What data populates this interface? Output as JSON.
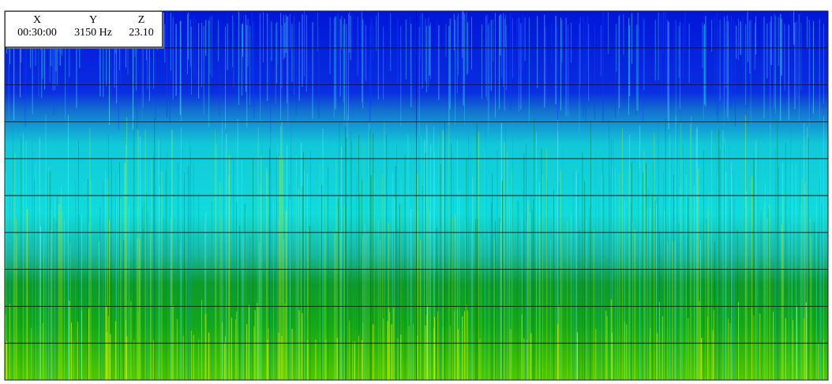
{
  "readout": {
    "x_label": "X",
    "y_label": "Y",
    "z_label": "Z",
    "x_value": "00:30:00",
    "y_value": "3150 Hz",
    "z_value": "23.10"
  },
  "chart_data": {
    "type": "heatmap",
    "title": "",
    "xlabel": "",
    "ylabel": "",
    "grid": true,
    "legend": "none",
    "colormap": [
      "#0018e6",
      "#00e8e8",
      "#00a800",
      "#f0f000"
    ],
    "rows": 10,
    "value_bands": [
      {
        "row_from_top": 1,
        "dominant_color": "blue"
      },
      {
        "row_from_top": 2,
        "dominant_color": "blue"
      },
      {
        "row_from_top": 3,
        "dominant_color": "blue-cyan"
      },
      {
        "row_from_top": 4,
        "dominant_color": "cyan"
      },
      {
        "row_from_top": 5,
        "dominant_color": "cyan"
      },
      {
        "row_from_top": 6,
        "dominant_color": "cyan-green"
      },
      {
        "row_from_top": 7,
        "dominant_color": "cyan-green"
      },
      {
        "row_from_top": 8,
        "dominant_color": "green"
      },
      {
        "row_from_top": 9,
        "dominant_color": "green"
      },
      {
        "row_from_top": 10,
        "dominant_color": "green-yellow"
      }
    ]
  }
}
